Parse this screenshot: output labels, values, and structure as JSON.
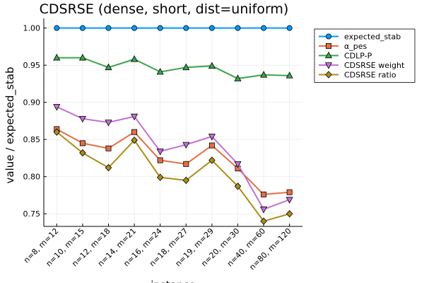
{
  "chart_data": {
    "type": "line",
    "title": "CDSRSE (dense, short, dist=uniform)",
    "xlabel": "instance",
    "ylabel": "value / expected_stab",
    "categories": [
      "n=8, m=12",
      "n=10, m=15",
      "n=12, m=18",
      "n=14, m=21",
      "n=16, m=24",
      "n=18, m=27",
      "n=19, m=29",
      "n=20, m=30",
      "n=40, m=60",
      "n=80, m=120"
    ],
    "ylim": [
      0.733,
      1.013
    ],
    "yticks": [
      0.75,
      0.8,
      0.85,
      0.9,
      0.95,
      1.0
    ],
    "ytick_labels": [
      "0.75",
      "0.80",
      "0.85",
      "0.90",
      "0.95",
      "1.00"
    ],
    "grid": true,
    "legend_position": "top-right, outside plot",
    "series": [
      {
        "name": "expected_stab",
        "color": "#009AFA",
        "marker": "circle",
        "values": [
          1.0,
          1.0,
          1.0,
          1.0,
          1.0,
          1.0,
          1.0,
          1.0,
          1.0,
          1.0
        ]
      },
      {
        "name": "α_pes",
        "color": "#E26F46",
        "marker": "square",
        "values": [
          0.864,
          0.845,
          0.838,
          0.86,
          0.822,
          0.817,
          0.842,
          0.811,
          0.776,
          0.779
        ]
      },
      {
        "name": "CDLP-P",
        "color": "#3DA44D",
        "marker": "triangle-up",
        "values": [
          0.96,
          0.96,
          0.947,
          0.958,
          0.941,
          0.947,
          0.949,
          0.932,
          0.937,
          0.936
        ]
      },
      {
        "name": "CDSRSE weight",
        "color": "#C271D2",
        "marker": "triangle-down",
        "values": [
          0.894,
          0.878,
          0.873,
          0.881,
          0.834,
          0.843,
          0.854,
          0.817,
          0.756,
          0.769
        ]
      },
      {
        "name": "CDSRSE ratio",
        "color": "#AC8D18",
        "marker": "diamond",
        "values": [
          0.86,
          0.832,
          0.812,
          0.849,
          0.799,
          0.795,
          0.822,
          0.787,
          0.74,
          0.75
        ]
      }
    ]
  }
}
